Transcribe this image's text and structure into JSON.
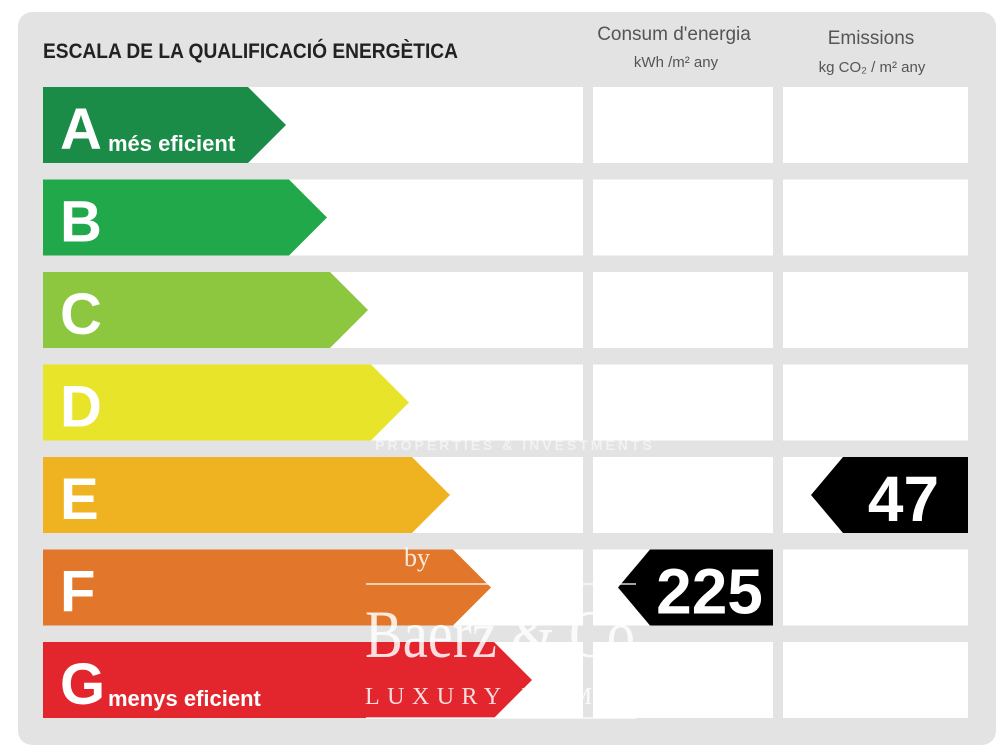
{
  "title": "ESCALA DE LA QUALIFICACIÓ ENERGÈTICA",
  "columns": [
    {
      "title": "Consum d'energia",
      "unit": "kWh /m² any"
    },
    {
      "title": "Emissions",
      "unit": "kg CO₂ / m² any"
    }
  ],
  "rows": [
    {
      "letter": "A",
      "label": "més eficient",
      "color": "#1a8c48"
    },
    {
      "letter": "B",
      "color": "#21a84a"
    },
    {
      "letter": "C",
      "color": "#8dc63f"
    },
    {
      "letter": "D",
      "color": "#e8e42a"
    },
    {
      "letter": "E",
      "color": "#efb322"
    },
    {
      "letter": "F",
      "color": "#e2762a"
    },
    {
      "letter": "G",
      "label": "menys eficient",
      "color": "#e3262d"
    }
  ],
  "ratings": [
    {
      "row": "F",
      "value": 225
    },
    {
      "row": "E",
      "value": 47
    }
  ],
  "watermark": {
    "tagline": "PROPERTIES & INVESTMENTS",
    "by": "by",
    "brand": "Baerz & Co",
    "sub": "LUXURY HOMES"
  }
}
